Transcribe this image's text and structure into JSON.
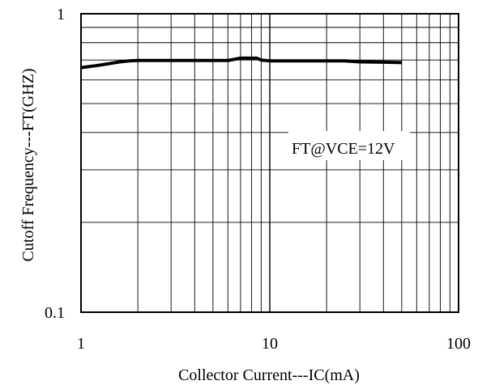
{
  "chart_data": {
    "type": "line",
    "xscale": "log",
    "yscale": "log",
    "xlim": [
      1,
      100
    ],
    "ylim": [
      0.1,
      1
    ],
    "xticks": [
      "1",
      "10",
      "100"
    ],
    "yticks": [
      "1",
      "0.1"
    ],
    "xlabel": "Collector Current---IC(mA)",
    "ylabel": "Cutoff Frequency---FT(GHZ)",
    "grid": true,
    "annotation": "FT@VCE=12V",
    "series": [
      {
        "x": [
          1,
          1.2,
          1.4,
          1.6,
          1.8,
          2,
          2.5,
          3,
          4,
          5,
          6,
          7,
          8,
          8.5,
          9,
          10,
          12,
          15,
          20,
          25,
          30,
          40,
          50
        ],
        "y": [
          0.66,
          0.67,
          0.68,
          0.69,
          0.695,
          0.697,
          0.697,
          0.697,
          0.697,
          0.697,
          0.697,
          0.71,
          0.71,
          0.71,
          0.7,
          0.695,
          0.695,
          0.695,
          0.695,
          0.695,
          0.69,
          0.688,
          0.686
        ]
      }
    ]
  }
}
